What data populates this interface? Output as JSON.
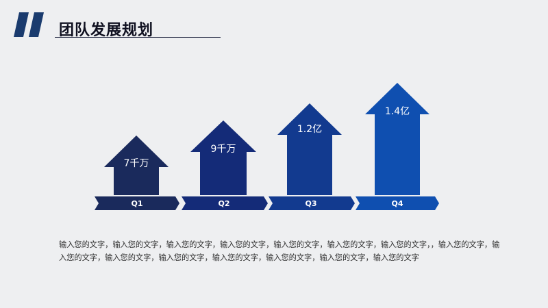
{
  "slide": {
    "title": "团队发展规划",
    "body_text": "输入您的文字，输入您的文字，输入您的文字，输入您的文字，输入您的文字，输入您的文字，输入您的文字，，输入您的文字，输入您的文字，输入您的文字，输入您的文字，输入您的文字，输入您的文字，输入您的文字，输入您的文字"
  },
  "colors": {
    "q1": "#1a2a5c",
    "q2": "#142b78",
    "q3": "#123a8f",
    "q4": "#0f4fb0",
    "accent_dark": "#1a3b6e",
    "title_text": "#0f1020"
  },
  "icons": {
    "title_decoration": "double-slash-icon"
  },
  "growth": [
    {
      "quarter": "Q1",
      "value_label": "7千万"
    },
    {
      "quarter": "Q2",
      "value_label": "9千万"
    },
    {
      "quarter": "Q3",
      "value_label": "1.2亿"
    },
    {
      "quarter": "Q4",
      "value_label": "1.4亿"
    }
  ]
}
